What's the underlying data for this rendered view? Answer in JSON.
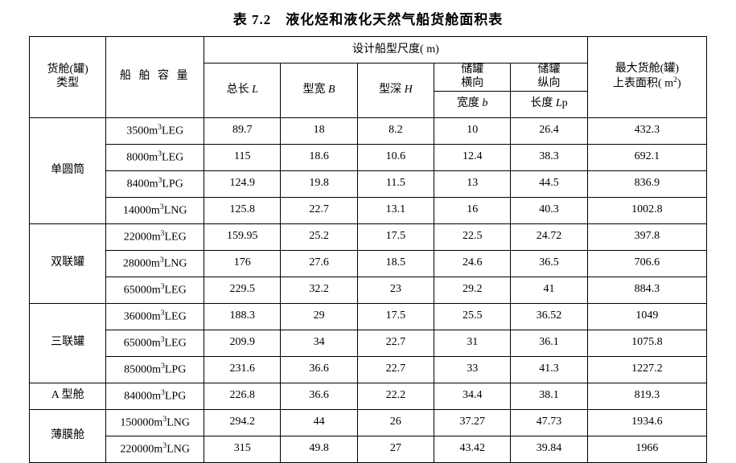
{
  "title": "表 7.2　液化烃和液化天然气船货舱面积表",
  "header": {
    "type": "货舱(罐)<br>类型",
    "capacity": "船 舶 容 量",
    "design": "设计船型尺度( m)",
    "loa": "总长 <span class='ital'>L</span>",
    "breadth": "型宽 <span class='ital'>B</span>",
    "depth": "型深 <span class='ital'>H</span>",
    "tank_t": "储罐<br>横向",
    "tank_l": "储罐<br>纵向",
    "tb": "宽度 <span class='ital'>b</span>",
    "tl": "长度 <span class='ital'>L</span>p",
    "area": "最大货舱(罐)<br>上表面积( m<sup>2</sup>)"
  },
  "groups": [
    {
      "name": "单圆筒",
      "rows": [
        {
          "cap": "3500m<sup>3</sup>LEG",
          "L": "89.7",
          "B": "18",
          "H": "8.2",
          "b": "10",
          "Lp": "26.4",
          "A": "432.3"
        },
        {
          "cap": "8000m<sup>3</sup>LEG",
          "L": "115",
          "B": "18.6",
          "H": "10.6",
          "b": "12.4",
          "Lp": "38.3",
          "A": "692.1"
        },
        {
          "cap": "8400m<sup>3</sup>LPG",
          "L": "124.9",
          "B": "19.8",
          "H": "11.5",
          "b": "13",
          "Lp": "44.5",
          "A": "836.9"
        },
        {
          "cap": "14000m<sup>3</sup>LNG",
          "L": "125.8",
          "B": "22.7",
          "H": "13.1",
          "b": "16",
          "Lp": "40.3",
          "A": "1002.8"
        }
      ]
    },
    {
      "name": "双联罐",
      "rows": [
        {
          "cap": "22000m<sup>3</sup>LEG",
          "L": "159.95",
          "B": "25.2",
          "H": "17.5",
          "b": "22.5",
          "Lp": "24.72",
          "A": "397.8"
        },
        {
          "cap": "28000m<sup>3</sup>LNG",
          "L": "176",
          "B": "27.6",
          "H": "18.5",
          "b": "24.6",
          "Lp": "36.5",
          "A": "706.6"
        },
        {
          "cap": "65000m<sup>3</sup>LEG",
          "L": "229.5",
          "B": "32.2",
          "H": "23",
          "b": "29.2",
          "Lp": "41",
          "A": "884.3"
        }
      ]
    },
    {
      "name": "三联罐",
      "rows": [
        {
          "cap": "36000m<sup>3</sup>LEG",
          "L": "188.3",
          "B": "29",
          "H": "17.5",
          "b": "25.5",
          "Lp": "36.52",
          "A": "1049"
        },
        {
          "cap": "65000m<sup>3</sup>LEG",
          "L": "209.9",
          "B": "34",
          "H": "22.7",
          "b": "31",
          "Lp": "36.1",
          "A": "1075.8"
        },
        {
          "cap": "85000m<sup>3</sup>LPG",
          "L": "231.6",
          "B": "36.6",
          "H": "22.7",
          "b": "33",
          "Lp": "41.3",
          "A": "1227.2"
        }
      ]
    },
    {
      "name": "A 型舱",
      "rows": [
        {
          "cap": "84000m<sup>3</sup>LPG",
          "L": "226.8",
          "B": "36.6",
          "H": "22.2",
          "b": "34.4",
          "Lp": "38.1",
          "A": "819.3"
        }
      ]
    },
    {
      "name": "薄膜舱",
      "rows": [
        {
          "cap": "150000m<sup>3</sup>LNG",
          "L": "294.2",
          "B": "44",
          "H": "26",
          "b": "37.27",
          "Lp": "47.73",
          "A": "1934.6"
        },
        {
          "cap": "220000m<sup>3</sup>LNG",
          "L": "315",
          "B": "49.8",
          "H": "27",
          "b": "43.42",
          "Lp": "39.84",
          "A": "1966"
        }
      ]
    }
  ]
}
